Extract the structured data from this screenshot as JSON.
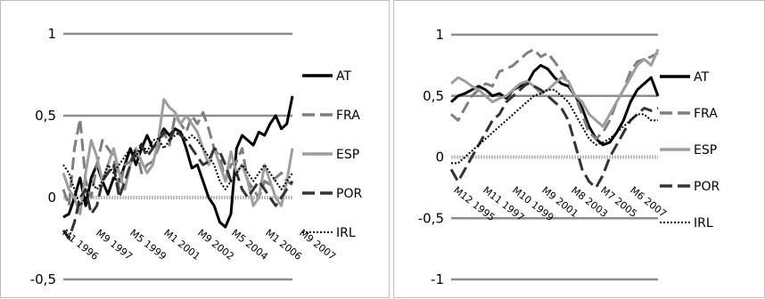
{
  "chart_data": [
    {
      "type": "line",
      "ylim": [
        -0.5,
        1
      ],
      "yticks": [
        "1",
        "0,5",
        "0",
        "-0,5"
      ],
      "x_tick_labels": [
        "M1 1996",
        "M9 1997",
        "M5 1999",
        "M1 2001",
        "M9 2002",
        "M5 2004",
        "M1 2006",
        "M9 2007"
      ],
      "grid": "horizontal",
      "legend_position": "right",
      "series": [
        {
          "name": "AT",
          "color": "#000000",
          "style": "solid",
          "values": [
            -0.12,
            -0.1,
            0.0,
            0.12,
            -0.05,
            0.12,
            0.2,
            0.1,
            0.02,
            0.12,
            0.1,
            0.2,
            0.3,
            0.2,
            0.3,
            0.38,
            0.3,
            0.35,
            0.42,
            0.38,
            0.42,
            0.4,
            0.3,
            0.18,
            0.2,
            0.1,
            0.0,
            -0.05,
            -0.15,
            -0.18,
            -0.1,
            0.3,
            0.38,
            0.35,
            0.32,
            0.4,
            0.38,
            0.45,
            0.5,
            0.42,
            0.45,
            0.62
          ]
        },
        {
          "name": "FRA",
          "color": "#7f7f7f",
          "style": "dashed",
          "values": [
            0.05,
            -0.05,
            0.3,
            0.48,
            0.1,
            0.0,
            0.2,
            0.35,
            0.3,
            0.25,
            0.05,
            0.2,
            0.22,
            0.3,
            0.15,
            0.2,
            0.22,
            0.3,
            0.4,
            0.32,
            0.5,
            0.45,
            0.4,
            0.5,
            0.45,
            0.52,
            0.42,
            0.3,
            0.25,
            0.1,
            0.2,
            0.22,
            0.3,
            0.1,
            0.05,
            0.0,
            0.1,
            0.08,
            0.12,
            0.15,
            0.1,
            0.08
          ]
        },
        {
          "name": "ESP",
          "color": "#9e9e9e",
          "style": "solid",
          "values": [
            0.15,
            0.05,
            0.0,
            -0.1,
            0.15,
            0.35,
            0.25,
            0.1,
            0.2,
            0.3,
            0.15,
            0.05,
            0.2,
            0.3,
            0.22,
            0.15,
            0.2,
            0.35,
            0.6,
            0.55,
            0.52,
            0.45,
            0.5,
            0.45,
            0.4,
            0.3,
            0.2,
            0.3,
            0.2,
            0.1,
            0.28,
            0.15,
            0.2,
            0.1,
            -0.05,
            0.0,
            0.2,
            0.1,
            0.0,
            -0.05,
            0.1,
            0.3
          ]
        },
        {
          "name": "POR",
          "color": "#333333",
          "style": "dashed",
          "values": [
            -0.2,
            -0.25,
            -0.15,
            0.0,
            0.05,
            -0.1,
            -0.05,
            0.1,
            0.15,
            0.2,
            0.0,
            0.1,
            0.2,
            0.3,
            0.32,
            0.25,
            0.3,
            0.35,
            0.4,
            0.35,
            0.42,
            0.38,
            0.35,
            0.3,
            0.25,
            0.2,
            0.22,
            0.3,
            0.28,
            0.2,
            0.1,
            0.15,
            0.05,
            0.0,
            0.05,
            0.1,
            0.05,
            0.0,
            -0.05,
            0.0,
            0.05,
            0.1
          ]
        },
        {
          "name": "IRL",
          "color": "#000000",
          "style": "dotted",
          "values": [
            0.2,
            0.15,
            0.05,
            -0.05,
            0.0,
            0.1,
            0.05,
            0.1,
            0.2,
            0.15,
            0.2,
            0.25,
            0.3,
            0.25,
            0.33,
            0.28,
            0.35,
            0.36,
            0.3,
            0.35,
            0.38,
            0.4,
            0.35,
            0.38,
            0.35,
            0.3,
            0.25,
            0.2,
            0.1,
            0.05,
            0.1,
            0.15,
            0.2,
            0.15,
            0.1,
            0.15,
            0.2,
            0.15,
            0.1,
            0.05,
            0.1,
            0.15
          ]
        }
      ]
    },
    {
      "type": "line",
      "ylim": [
        -1,
        1
      ],
      "yticks": [
        "1",
        "0,5",
        "0",
        "-0,5",
        "-1"
      ],
      "x_tick_labels": [
        "M12 1995",
        "M11 1997",
        "M10 1999",
        "M9 2001",
        "M8 2003",
        "M7 2005",
        "M6 2007"
      ],
      "grid": "horizontal",
      "legend_position": "right",
      "series": [
        {
          "name": "AT",
          "color": "#000000",
          "style": "solid",
          "values": [
            0.45,
            0.5,
            0.52,
            0.55,
            0.58,
            0.55,
            0.5,
            0.52,
            0.48,
            0.55,
            0.58,
            0.6,
            0.7,
            0.75,
            0.72,
            0.65,
            0.6,
            0.58,
            0.5,
            0.4,
            0.25,
            0.15,
            0.1,
            0.12,
            0.2,
            0.3,
            0.45,
            0.55,
            0.6,
            0.65,
            0.5
          ]
        },
        {
          "name": "FRA",
          "color": "#7f7f7f",
          "style": "dashed",
          "values": [
            0.35,
            0.3,
            0.4,
            0.5,
            0.55,
            0.6,
            0.58,
            0.7,
            0.72,
            0.75,
            0.8,
            0.85,
            0.88,
            0.82,
            0.85,
            0.78,
            0.7,
            0.6,
            0.5,
            0.35,
            0.2,
            0.15,
            0.2,
            0.3,
            0.45,
            0.55,
            0.7,
            0.78,
            0.8,
            0.82,
            0.85
          ]
        },
        {
          "name": "ESP",
          "color": "#9e9e9e",
          "style": "solid",
          "values": [
            0.6,
            0.65,
            0.62,
            0.58,
            0.55,
            0.5,
            0.45,
            0.48,
            0.5,
            0.55,
            0.6,
            0.62,
            0.58,
            0.52,
            0.55,
            0.6,
            0.65,
            0.62,
            0.5,
            0.45,
            0.35,
            0.3,
            0.25,
            0.35,
            0.45,
            0.55,
            0.65,
            0.75,
            0.8,
            0.75,
            0.88
          ]
        },
        {
          "name": "POR",
          "color": "#333333",
          "style": "dashed",
          "values": [
            -0.1,
            -0.2,
            -0.1,
            0.0,
            0.1,
            0.2,
            0.3,
            0.35,
            0.45,
            0.5,
            0.55,
            0.6,
            0.58,
            0.55,
            0.5,
            0.45,
            0.4,
            0.3,
            0.1,
            -0.1,
            -0.2,
            -0.25,
            -0.15,
            0.0,
            0.1,
            0.2,
            0.3,
            0.35,
            0.4,
            0.38,
            0.4
          ]
        },
        {
          "name": "IRL",
          "color": "#000000",
          "style": "dotted",
          "values": [
            -0.05,
            -0.05,
            0.0,
            0.05,
            0.1,
            0.15,
            0.2,
            0.25,
            0.3,
            0.35,
            0.4,
            0.45,
            0.5,
            0.52,
            0.55,
            0.55,
            0.5,
            0.45,
            0.35,
            0.25,
            0.15,
            0.1,
            0.12,
            0.15,
            0.2,
            0.25,
            0.3,
            0.35,
            0.35,
            0.3,
            0.3
          ]
        }
      ]
    }
  ]
}
